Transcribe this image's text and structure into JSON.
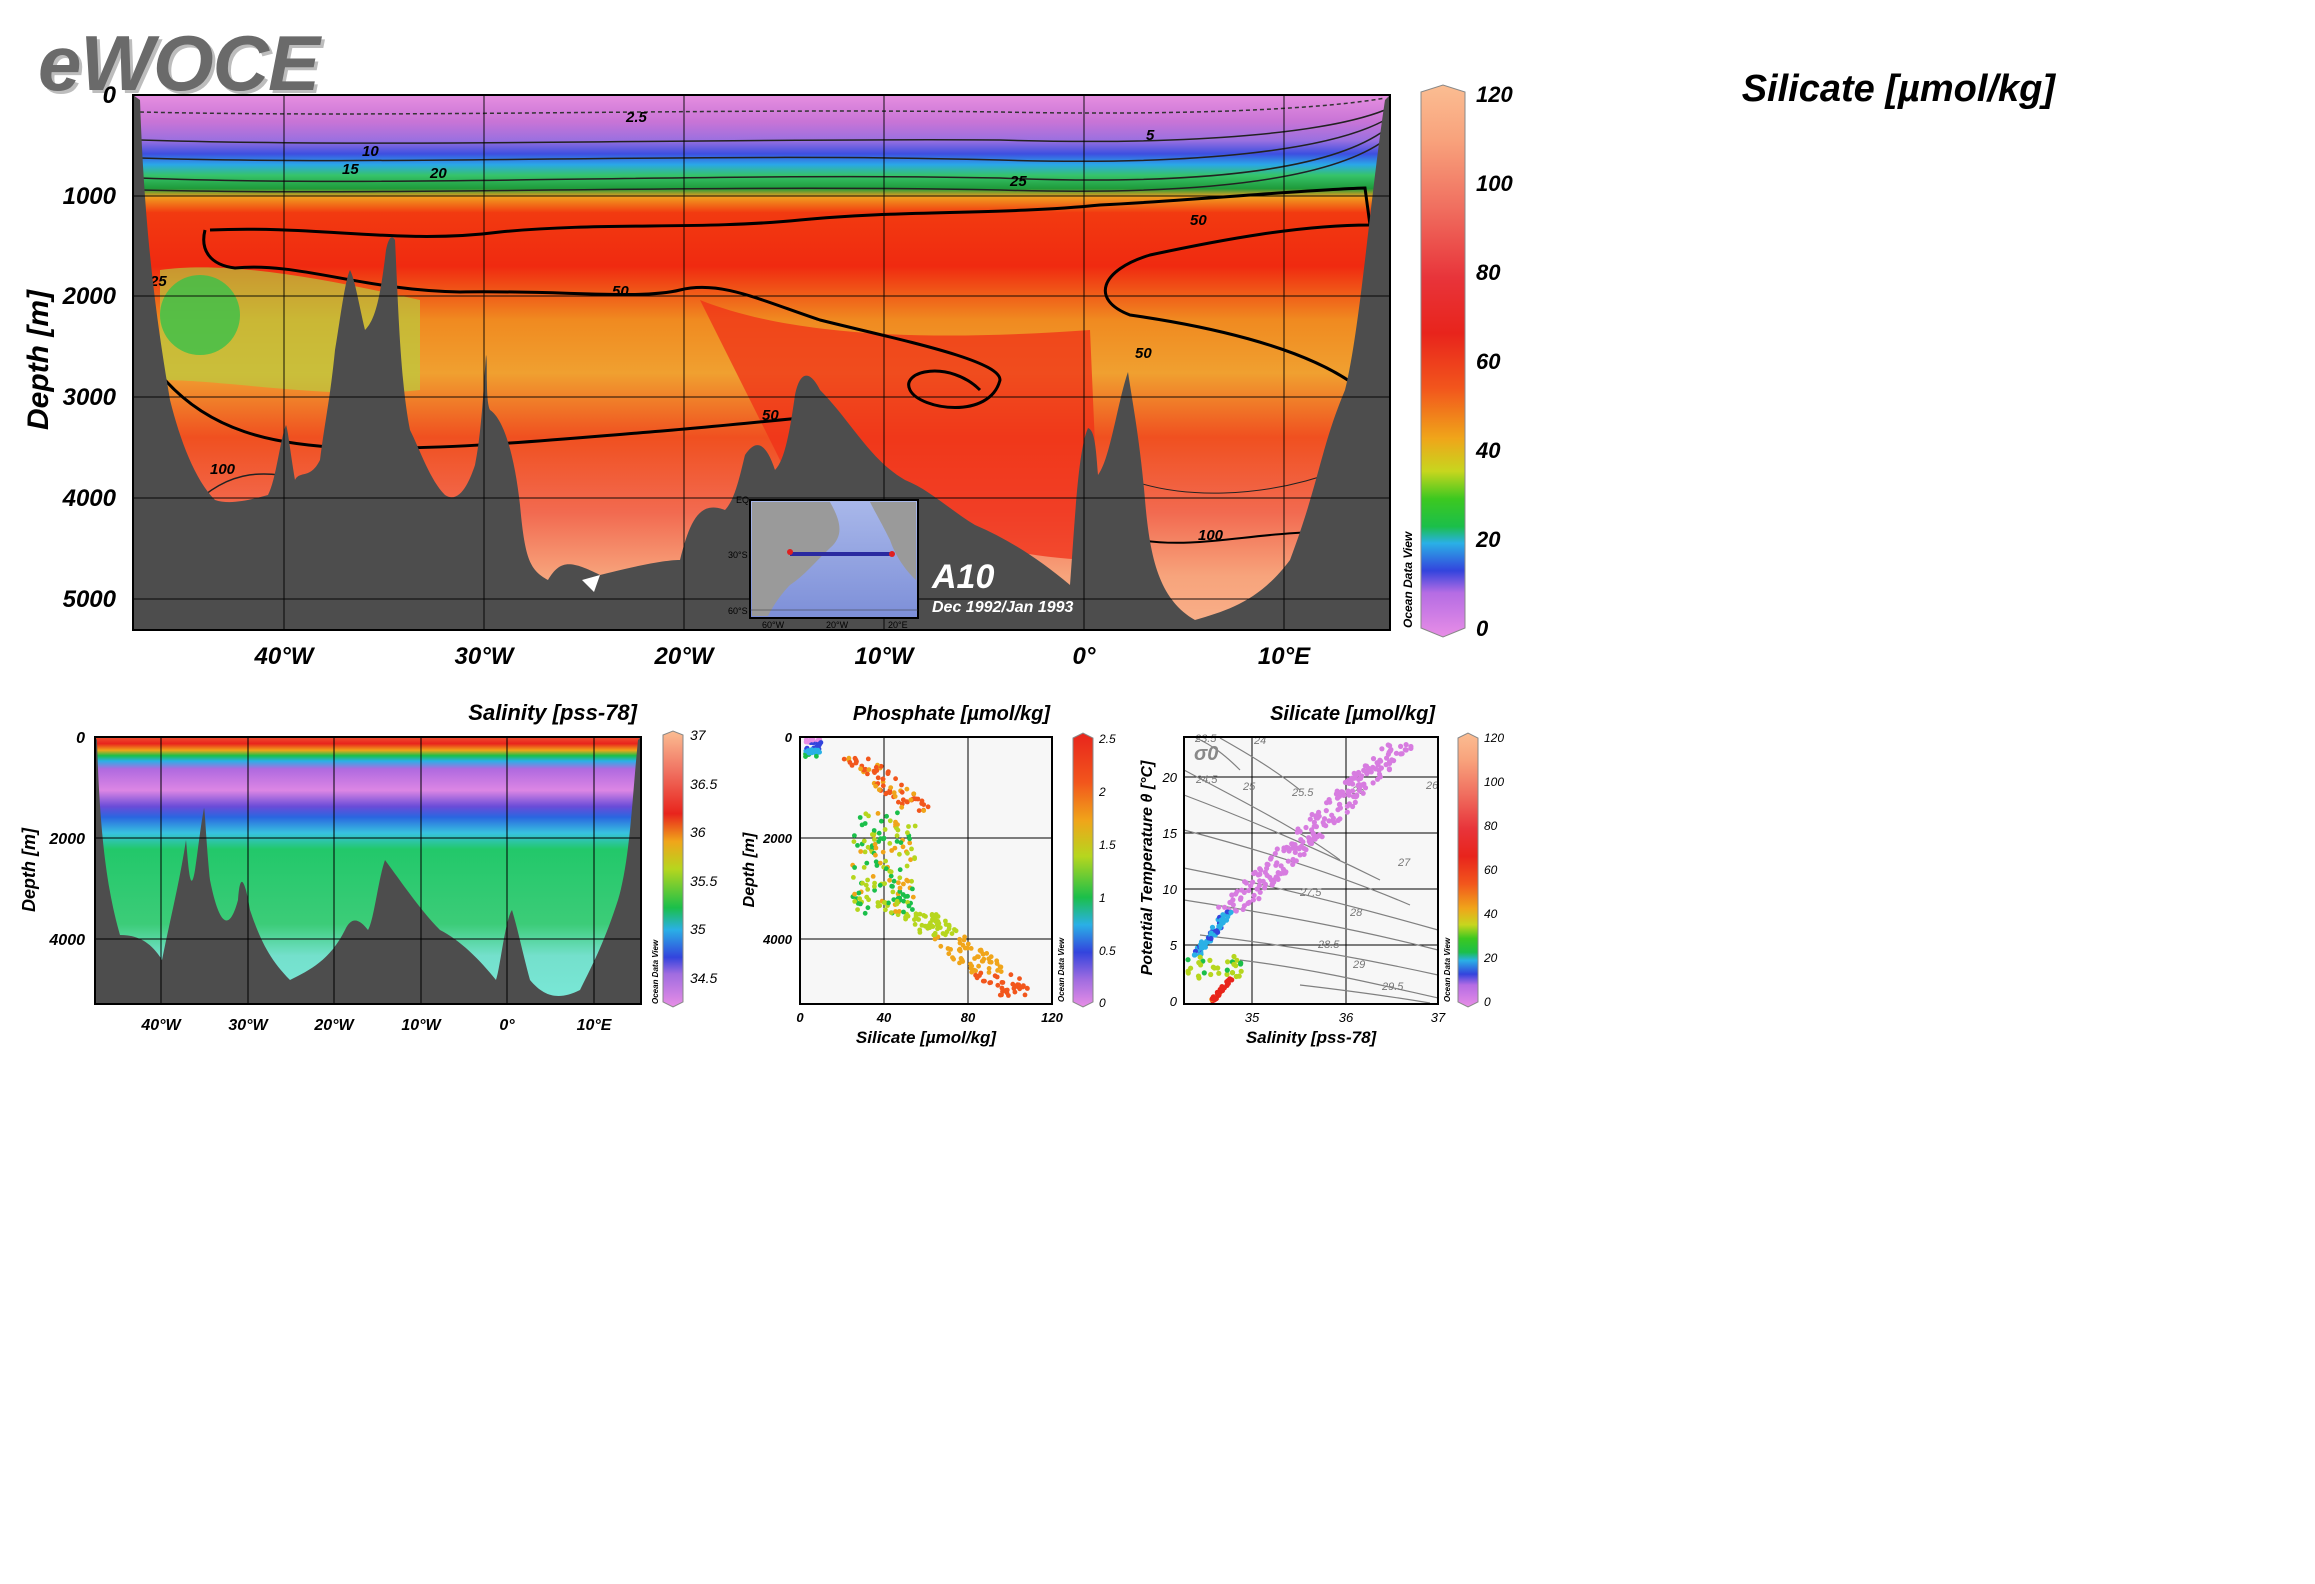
{
  "logo": "eWOCE",
  "main_section": {
    "title": "Silicate [µmol/kg]",
    "ylabel": "Depth [m]",
    "yticks": [
      "0",
      "1000",
      "2000",
      "3000",
      "4000",
      "5000"
    ],
    "xticks": [
      "40°W",
      "30°W",
      "20°W",
      "10°W",
      "0°",
      "10°E"
    ],
    "colorbar_ticks": [
      "0",
      "20",
      "40",
      "60",
      "80",
      "100",
      "120"
    ],
    "watermark": "Ocean Data View",
    "contour_labels": [
      "2.5",
      "5",
      "10",
      "15",
      "20",
      "25",
      "50",
      "50",
      "50",
      "50",
      "25",
      "20",
      "100",
      "100",
      "100",
      "1",
      "100",
      "100"
    ],
    "section_name": "A10",
    "cruise_date": "Dec 1992/Jan 1993",
    "inset_map": {
      "lat_labels": [
        "EQ",
        "30°S",
        "60°S"
      ],
      "lon_labels": [
        "60°W",
        "20°W",
        "20°E"
      ]
    }
  },
  "salinity_section": {
    "title": "Salinity [pss-78]",
    "ylabel": "Depth [m]",
    "yticks": [
      "0",
      "2000",
      "4000"
    ],
    "xticks": [
      "40°W",
      "30°W",
      "20°W",
      "10°W",
      "0°",
      "10°E"
    ],
    "colorbar_ticks": [
      "34.5",
      "35",
      "35.5",
      "36",
      "36.5",
      "37"
    ],
    "watermark": "Ocean Data View"
  },
  "phosphate_scatter": {
    "title": "Phosphate [µmol/kg]",
    "xlabel": "Silicate [µmol/kg]",
    "ylabel": "Depth [m]",
    "xticks": [
      "0",
      "40",
      "80",
      "120"
    ],
    "yticks": [
      "0",
      "2000",
      "4000"
    ],
    "colorbar_ticks": [
      "0",
      "0.5",
      "1",
      "1.5",
      "2",
      "2.5"
    ],
    "watermark": "Ocean Data View"
  },
  "ts_diagram": {
    "title": "Silicate [µmol/kg]",
    "xlabel": "Salinity [pss-78]",
    "ylabel": "Potential Temperature θ [°C]",
    "xticks": [
      "35",
      "36",
      "37"
    ],
    "yticks": [
      "0",
      "5",
      "10",
      "15",
      "20"
    ],
    "sigma_label": "σ0",
    "isopycnal_labels": [
      "23.5",
      "24",
      "24.5",
      "25",
      "25.5",
      "26",
      "26",
      "27",
      "27.5",
      "28",
      "28.5",
      "29",
      "29.5"
    ],
    "colorbar_ticks": [
      "0",
      "20",
      "40",
      "60",
      "80",
      "100",
      "120"
    ],
    "watermark": "Ocean Data View"
  },
  "chart_data": [
    {
      "type": "heatmap",
      "title": "Silicate [µmol/kg]",
      "xlabel": "",
      "ylabel": "Depth [m]",
      "x_range_lon": [
        -47.5,
        15
      ],
      "ylim": [
        5300,
        0
      ],
      "colorbar_range": [
        0,
        120
      ],
      "contour_levels": [
        2.5,
        5,
        10,
        15,
        20,
        25,
        50,
        100
      ],
      "grid": true,
      "section": "A10",
      "period": "Dec 1992/Jan 1993"
    },
    {
      "type": "heatmap",
      "title": "Salinity [pss-78]",
      "xlabel": "",
      "ylabel": "Depth [m]",
      "x_range_lon": [
        -47.5,
        15
      ],
      "ylim": [
        5300,
        0
      ],
      "colorbar_range": [
        34.2,
        37
      ],
      "grid": true
    },
    {
      "type": "scatter",
      "title": "Phosphate [µmol/kg]",
      "xlabel": "Silicate [µmol/kg]",
      "ylabel": "Depth [m]",
      "xlim": [
        0,
        120
      ],
      "ylim": [
        5300,
        0
      ],
      "color_range": [
        0,
        2.5
      ],
      "grid": true
    },
    {
      "type": "scatter",
      "title": "Silicate [µmol/kg]",
      "xlabel": "Salinity [pss-78]",
      "ylabel": "Potential Temperature θ [°C]",
      "xlim": [
        34.1,
        37
      ],
      "ylim": [
        -0.5,
        23.5
      ],
      "color_range": [
        0,
        120
      ],
      "grid": true
    }
  ]
}
